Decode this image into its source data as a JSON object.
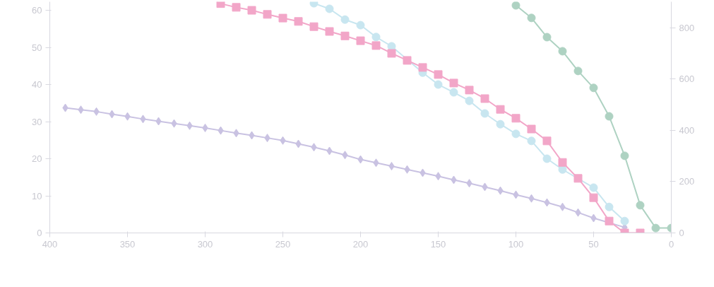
{
  "chart_data": {
    "type": "line",
    "xlim": [
      400,
      0
    ],
    "xticks": [
      400,
      350,
      300,
      250,
      200,
      150,
      100,
      50,
      0
    ],
    "ylim": [
      0,
      62.3
    ],
    "yticks": [
      0,
      10,
      20,
      30,
      40,
      50,
      60
    ],
    "y2lim": [
      0,
      902
    ],
    "y2ticks": [
      0,
      200,
      400,
      600,
      800
    ],
    "grid": false,
    "line_style": "solid",
    "series": [
      {
        "color": "#c9c2e2",
        "marker": "diamond",
        "x": [
          390,
          380,
          370,
          360,
          350,
          340,
          330,
          320,
          310,
          300,
          290,
          280,
          270,
          260,
          250,
          240,
          230,
          220,
          210,
          200,
          190,
          180,
          170,
          160,
          150,
          140,
          130,
          120,
          110,
          100,
          90,
          80,
          70,
          60,
          50,
          40,
          30
        ],
        "values": [
          33.7,
          33.2,
          32.7,
          32.0,
          31.4,
          30.7,
          30.1,
          29.5,
          28.9,
          28.3,
          27.6,
          26.9,
          26.3,
          25.6,
          24.9,
          24.0,
          23.1,
          22.1,
          21.0,
          19.8,
          18.9,
          18.0,
          17.1,
          16.2,
          15.3,
          14.3,
          13.4,
          12.4,
          11.4,
          10.3,
          9.3,
          8.2,
          7.0,
          5.5,
          4.0,
          null,
          1.5
        ]
      },
      {
        "color": "#c8e6f0",
        "marker": "circle",
        "x": [
          230,
          220,
          210,
          200,
          190,
          180,
          170,
          160,
          150,
          140,
          130,
          120,
          110,
          100,
          90,
          80,
          70,
          60,
          50,
          40,
          30
        ],
        "values": [
          61.9,
          60.4,
          57.5,
          56.0,
          52.8,
          50.3,
          null,
          43.2,
          40.0,
          37.9,
          35.6,
          32.2,
          29.3,
          26.7,
          24.8,
          20.0,
          17.1,
          null,
          12.2,
          7.0,
          3.2
        ]
      },
      {
        "color": "#f2a6c8",
        "marker": "square",
        "x": [
          290,
          280,
          270,
          260,
          250,
          240,
          230,
          220,
          210,
          200,
          190,
          180,
          170,
          160,
          150,
          140,
          130,
          120,
          110,
          100,
          90,
          80,
          70,
          60,
          50,
          40,
          30,
          20
        ],
        "values": [
          61.8,
          60.8,
          60.0,
          58.9,
          57.9,
          57.0,
          55.6,
          54.3,
          53.1,
          51.8,
          50.5,
          48.4,
          46.5,
          44.6,
          42.7,
          40.4,
          38.5,
          36.2,
          33.3,
          30.9,
          28.0,
          24.8,
          19.0,
          14.7,
          9.5,
          3.2,
          0,
          0
        ]
      },
      {
        "color": "#aed2c2",
        "marker": "circle",
        "axis": "y2",
        "x": [
          100,
          90,
          80,
          70,
          60,
          50,
          40,
          30,
          20,
          10,
          0
        ],
        "values": [
          888,
          839,
          764,
          709,
          632,
          566,
          455,
          301,
          108,
          19,
          19
        ]
      }
    ]
  }
}
